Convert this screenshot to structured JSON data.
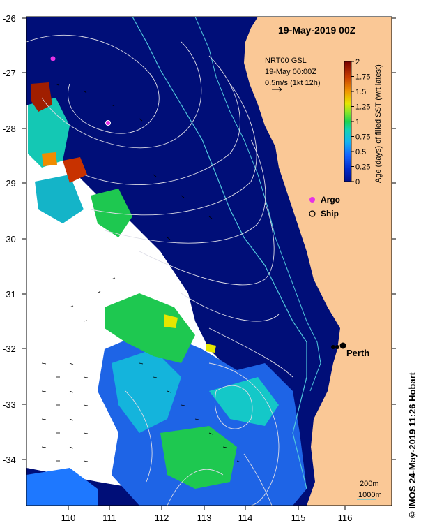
{
  "map": {
    "title": "19-May-2019 00Z",
    "info_lines": [
      "NRT00 GSL",
      "19-May 00:00Z",
      "0.5m/s (1kt 12h)"
    ],
    "lon_ticks": [
      "110",
      "111",
      "112",
      "113",
      "114",
      "115",
      "116"
    ],
    "lat_ticks": [
      "-26",
      "-27",
      "-28",
      "-29",
      "-30",
      "-31",
      "-32",
      "-33",
      "-34"
    ],
    "colorbar": {
      "label": "Age (days) of filled SST (wrt latest)",
      "ticks": [
        "0",
        "0.25",
        "0.5",
        "0.75",
        "1",
        "1.25",
        "1.5",
        "1.75",
        "2"
      ],
      "colors": [
        "#000e8c",
        "#0032d2",
        "#1e78ff",
        "#14c8e6",
        "#1ed264",
        "#9be628",
        "#f0dc00",
        "#f08c00",
        "#c83200",
        "#780000"
      ]
    },
    "legend": [
      {
        "label": "Argo",
        "color": "#e632e6"
      },
      {
        "label": "Ship",
        "color": "#000000"
      }
    ],
    "city": "Perth",
    "scale_labels": [
      "200m",
      "1000m"
    ],
    "credit": "© IMOS 24-May-2019 11:26 Hobart",
    "colors": {
      "land": "#fac896",
      "ocean": "#000e78",
      "cloud": "#ffffff",
      "isobath_200": "#50c8dc",
      "contour": "#c8c8dc"
    }
  }
}
